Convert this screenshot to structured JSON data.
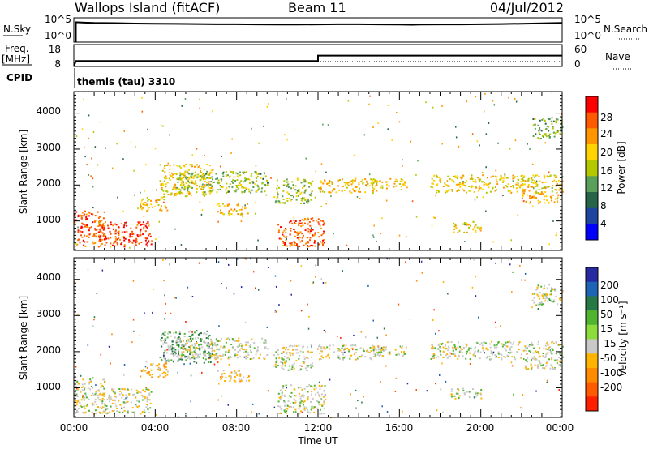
{
  "header": {
    "site_title": "Wallops Island (fitACF)",
    "beam": "Beam 11",
    "date": "04/Jul/2012"
  },
  "panels": {
    "noise": {
      "left_label": "N.Sky",
      "left_ticks": [
        "10^5",
        "10^0"
      ],
      "right_label": "N.Search",
      "right_ticks": [
        "10^5",
        "10^0"
      ]
    },
    "freq": {
      "left_label_line1": "Freq.",
      "left_label_line2": "[MHz]",
      "left_ticks": [
        "18",
        "8"
      ],
      "right_label": "Nave",
      "right_ticks": [
        "60",
        "0"
      ]
    },
    "cpid": {
      "label": "CPID",
      "value": "themis (tau) 3310"
    }
  },
  "axes": {
    "ylabel": "Slant Range [km]",
    "xlabel": "Time UT",
    "y_ticks": [
      "4000",
      "3000",
      "2000",
      "1000"
    ],
    "x_ticks": [
      "00:00",
      "04:00",
      "08:00",
      "12:00",
      "16:00",
      "20:00",
      "00:00"
    ]
  },
  "power_scale": {
    "label": "Power [dB]",
    "ticks": [
      "28",
      "24",
      "20",
      "16",
      "12",
      "8",
      "4"
    ],
    "colors": [
      "#ff0000",
      "#ff5a00",
      "#ff9600",
      "#ffd200",
      "#b4c800",
      "#5aa05a",
      "#286446",
      "#1e46a0",
      "#0000ff"
    ]
  },
  "velocity_scale": {
    "label": "Velocity [m s⁻¹]",
    "ticks": [
      "200",
      "100",
      "50",
      "15",
      "-15",
      "-50",
      "-100",
      "-200"
    ],
    "colors": [
      "#2828a0",
      "#1e64b4",
      "#287846",
      "#50b430",
      "#8cdc3c",
      "#c8c8c8",
      "#ffb400",
      "#ff8c00",
      "#ff5a00",
      "#ff1e00"
    ]
  },
  "chart_data": [
    {
      "type": "line",
      "panel": "noise",
      "x_range": [
        "00:00",
        "24:00"
      ],
      "y_range": [
        "10^0",
        "10^5"
      ],
      "series": [
        {
          "x": [
            0.1,
            0.5,
            1,
            2,
            3,
            4,
            5,
            6,
            7,
            8,
            9,
            10,
            11,
            12,
            13,
            14,
            15,
            16,
            16.6,
            17,
            18,
            19,
            20,
            21,
            22,
            23,
            24
          ],
          "y": [
            4.9,
            4.8,
            4.7,
            4.65,
            4.55,
            4.5,
            4.45,
            4.4,
            4.35,
            4.35,
            4.3,
            4.25,
            4.25,
            4.3,
            4.35,
            4.35,
            4.3,
            4.25,
            4.2,
            4.25,
            4.3,
            4.3,
            4.35,
            4.4,
            4.5,
            4.6,
            4.7
          ]
        }
      ]
    },
    {
      "type": "line",
      "panel": "frequency",
      "x_range": [
        "00:00",
        "24:00"
      ],
      "ylabel": "Freq. [MHz]",
      "y_range": [
        8,
        18
      ],
      "series": [
        {
          "x": [
            0,
            0.1,
            12,
            12,
            24
          ],
          "y": [
            8,
            10.8,
            10.8,
            13.6,
            13.6
          ]
        }
      ]
    },
    {
      "type": "heatmap",
      "panel": "power",
      "colorbar": "Power [dB]",
      "colorbar_range": [
        0,
        30
      ],
      "x_range": [
        "00:00",
        "24:00"
      ],
      "ylabel": "Slant Range [km]",
      "ylim": [
        180,
        4600
      ],
      "echo_regions": [
        {
          "t": [
            0.0,
            1.5
          ],
          "range": [
            300,
            1300
          ],
          "power": 26
        },
        {
          "t": [
            1.2,
            3.8
          ],
          "range": [
            300,
            1000
          ],
          "power": 28
        },
        {
          "t": [
            3.2,
            4.6
          ],
          "range": [
            1300,
            1700
          ],
          "power": 20
        },
        {
          "t": [
            4.2,
            6.8
          ],
          "range": [
            1700,
            2600
          ],
          "power": 18
        },
        {
          "t": [
            5.0,
            9.5
          ],
          "range": [
            1800,
            2400
          ],
          "power": 14
        },
        {
          "t": [
            7.0,
            8.6
          ],
          "range": [
            1200,
            1500
          ],
          "power": 20
        },
        {
          "t": [
            9.8,
            11.7
          ],
          "range": [
            1500,
            2200
          ],
          "power": 14
        },
        {
          "t": [
            10.0,
            12.3
          ],
          "range": [
            300,
            1100
          ],
          "power": 26
        },
        {
          "t": [
            12.0,
            15.0
          ],
          "range": [
            1800,
            2200
          ],
          "power": 20
        },
        {
          "t": [
            14.5,
            16.3
          ],
          "range": [
            1900,
            2200
          ],
          "power": 18
        },
        {
          "t": [
            18.5,
            20.0
          ],
          "range": [
            700,
            1000
          ],
          "power": 18
        },
        {
          "t": [
            17.5,
            24.0
          ],
          "range": [
            1800,
            2300
          ],
          "power": 18
        },
        {
          "t": [
            22.0,
            24.0
          ],
          "range": [
            1500,
            1800
          ],
          "power": 22
        },
        {
          "t": [
            22.5,
            24.0
          ],
          "range": [
            3300,
            3900
          ],
          "power": 12
        }
      ]
    },
    {
      "type": "heatmap",
      "panel": "velocity",
      "colorbar": "Velocity [m s⁻¹]",
      "colorbar_range": [
        -200,
        200
      ],
      "x_range": [
        "00:00",
        "24:00"
      ],
      "ylabel": "Slant Range [km]",
      "ylim": [
        180,
        4600
      ],
      "echo_regions": [
        {
          "t": [
            0.0,
            1.5
          ],
          "range": [
            300,
            1300
          ],
          "velocity": 0
        },
        {
          "t": [
            1.2,
            3.8
          ],
          "range": [
            300,
            1000
          ],
          "velocity": -5
        },
        {
          "t": [
            3.2,
            4.6
          ],
          "range": [
            1300,
            1700
          ],
          "velocity": -40
        },
        {
          "t": [
            4.2,
            6.8
          ],
          "range": [
            1700,
            2600
          ],
          "velocity": 25
        },
        {
          "t": [
            5.0,
            9.5
          ],
          "range": [
            1800,
            2400
          ],
          "velocity": 0
        },
        {
          "t": [
            7.0,
            8.6
          ],
          "range": [
            1200,
            1500
          ],
          "velocity": -30
        },
        {
          "t": [
            9.8,
            11.7
          ],
          "range": [
            1500,
            2200
          ],
          "velocity": 0
        },
        {
          "t": [
            10.0,
            12.3
          ],
          "range": [
            300,
            1100
          ],
          "velocity": 0
        },
        {
          "t": [
            12.0,
            15.0
          ],
          "range": [
            1800,
            2200
          ],
          "velocity": 0
        },
        {
          "t": [
            14.5,
            16.3
          ],
          "range": [
            1900,
            2200
          ],
          "velocity": 0
        },
        {
          "t": [
            18.5,
            20.0
          ],
          "range": [
            700,
            1000
          ],
          "velocity": 0
        },
        {
          "t": [
            17.5,
            24.0
          ],
          "range": [
            1800,
            2300
          ],
          "velocity": 0
        },
        {
          "t": [
            22.0,
            24.0
          ],
          "range": [
            1500,
            1800
          ],
          "velocity": 0
        },
        {
          "t": [
            22.5,
            24.0
          ],
          "range": [
            3300,
            3900
          ],
          "velocity": 0
        }
      ]
    }
  ]
}
